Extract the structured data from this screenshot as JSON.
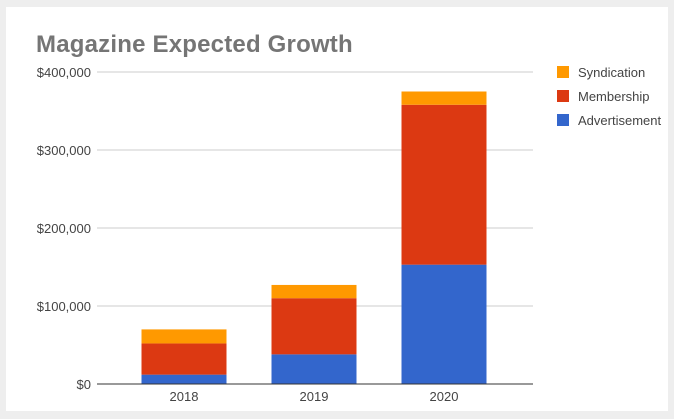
{
  "chart_data": {
    "type": "bar",
    "stacked": true,
    "title": "Magazine Expected Growth",
    "xlabel": "",
    "ylabel": "",
    "categories": [
      "2018",
      "2019",
      "2020"
    ],
    "series": [
      {
        "name": "Advertisement",
        "color": "#3366cc",
        "values": [
          12000,
          38000,
          153000
        ]
      },
      {
        "name": "Membership",
        "color": "#dc3912",
        "values": [
          40000,
          72000,
          205000
        ]
      },
      {
        "name": "Syndication",
        "color": "#ff9900",
        "values": [
          18000,
          17000,
          17000
        ]
      }
    ],
    "ylim": [
      0,
      400000
    ],
    "yticks": [
      {
        "value": 0,
        "label": "$0"
      },
      {
        "value": 100000,
        "label": "$100,000"
      },
      {
        "value": 200000,
        "label": "$200,000"
      },
      {
        "value": 300000,
        "label": "$300,000"
      },
      {
        "value": 400000,
        "label": "$400,000"
      }
    ],
    "legend_order": [
      "Syndication",
      "Membership",
      "Advertisement"
    ],
    "legend_position": "top-right",
    "grid": true
  }
}
